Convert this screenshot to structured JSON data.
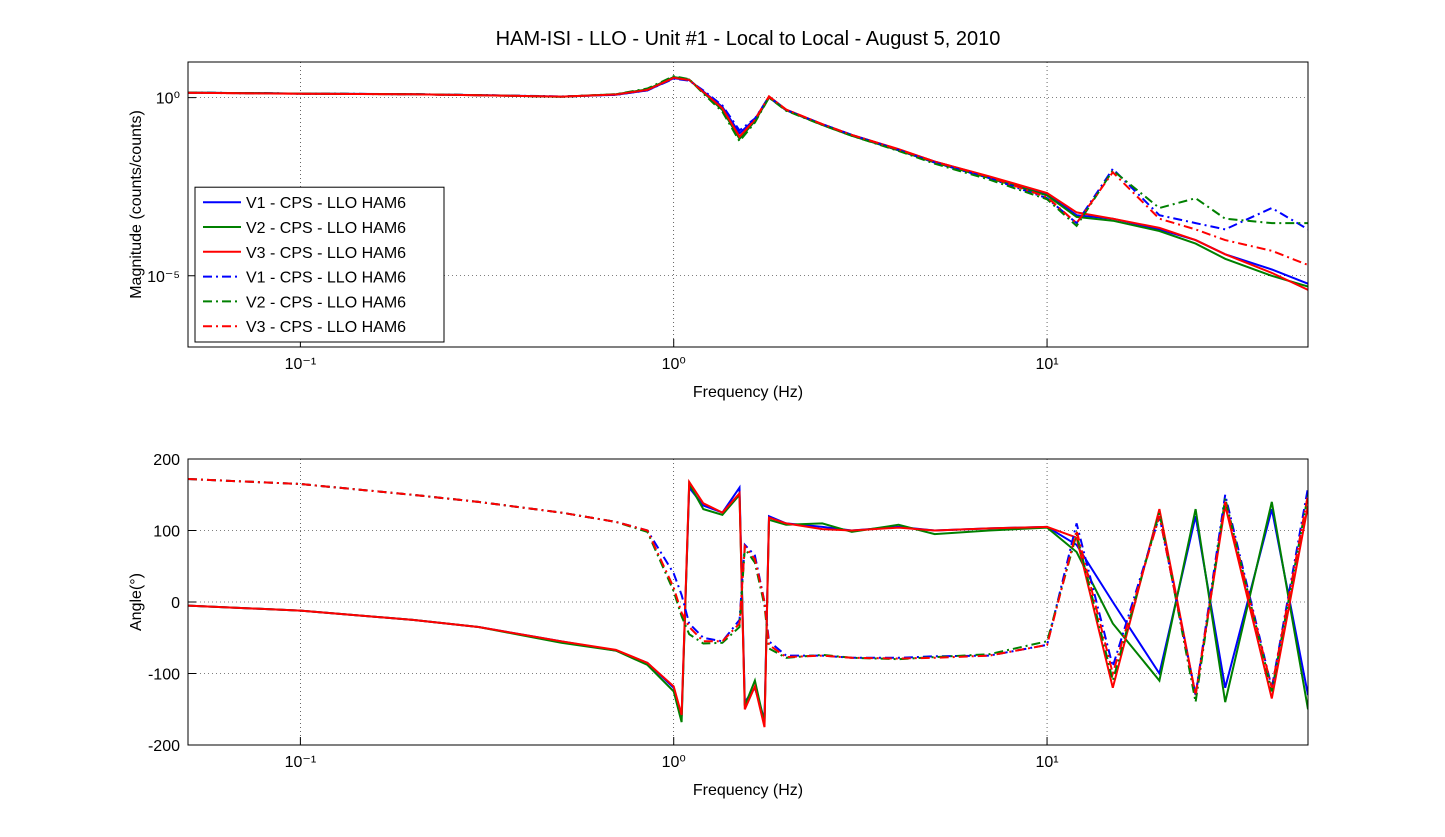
{
  "chart_data": [
    {
      "type": "line",
      "title": "HAM-ISI - LLO - Unit #1 - Local to Local - August 5, 2010",
      "x_label": "Frequency (Hz)",
      "y_label": "Magnitude (counts/counts)",
      "log_x": true,
      "log_y": true,
      "grid": true,
      "legend": "lower left",
      "xlim": [
        0.05,
        50
      ],
      "ylim": [
        1e-07,
        10
      ],
      "xticks": [
        {
          "value": 0.1,
          "label": "10⁻¹"
        },
        {
          "value": 1,
          "label": "10⁰"
        },
        {
          "value": 10,
          "label": "10¹"
        }
      ],
      "yticks": [
        {
          "value": 1e-05,
          "label": "10⁻⁵"
        },
        {
          "value": 1,
          "label": "10⁰"
        }
      ],
      "x": [
        0.05,
        0.1,
        0.2,
        0.3,
        0.5,
        0.7,
        0.85,
        1,
        1.1,
        1.2,
        1.35,
        1.5,
        1.65,
        1.8,
        2,
        2.5,
        3,
        4,
        5,
        7,
        10,
        12,
        15,
        20,
        25,
        30,
        40,
        50
      ],
      "series": [
        {
          "name": "V1 - CPS - LLO HAM6",
          "color": "#0000ff",
          "line_style": "solid",
          "values": [
            1.38,
            1.3,
            1.25,
            1.18,
            1.07,
            1.2,
            1.6,
            3.5,
            3.1,
            1.5,
            0.55,
            0.1,
            0.25,
            1.05,
            0.45,
            0.18,
            0.09,
            0.035,
            0.016,
            0.006,
            0.002,
            0.0005,
            0.0004,
            0.0002,
            0.0001,
            4e-05,
            1.5e-05,
            6e-06
          ]
        },
        {
          "name": "V2 - CPS - LLO HAM6",
          "color": "#008000",
          "line_style": "solid",
          "values": [
            1.38,
            1.3,
            1.24,
            1.17,
            1.06,
            1.25,
            1.7,
            3.8,
            3.2,
            1.4,
            0.45,
            0.07,
            0.22,
            1.0,
            0.44,
            0.17,
            0.085,
            0.033,
            0.015,
            0.0055,
            0.0018,
            0.00045,
            0.00035,
            0.00018,
            8e-05,
            3e-05,
            1e-05,
            5e-06
          ]
        },
        {
          "name": "V3 - CPS - LLO HAM6",
          "color": "#ff0000",
          "line_style": "solid",
          "values": [
            1.37,
            1.29,
            1.24,
            1.17,
            1.07,
            1.22,
            1.65,
            3.6,
            3.15,
            1.45,
            0.5,
            0.08,
            0.24,
            1.08,
            0.46,
            0.18,
            0.09,
            0.036,
            0.016,
            0.0062,
            0.0021,
            0.0006,
            0.0004,
            0.00022,
            0.0001,
            4e-05,
            1.2e-05,
            4e-06
          ]
        },
        {
          "name": "V1 - CPS - LLO HAM6",
          "color": "#0000ff",
          "line_style": "dash-dot",
          "values": [
            1.38,
            1.3,
            1.25,
            1.18,
            1.08,
            1.2,
            1.6,
            3.4,
            3.0,
            1.6,
            0.6,
            0.12,
            0.26,
            1.05,
            0.45,
            0.18,
            0.09,
            0.034,
            0.015,
            0.0055,
            0.0015,
            0.0003,
            0.01,
            0.0005,
            0.0003,
            0.0002,
            0.0008,
            0.0002
          ]
        },
        {
          "name": "V2 - CPS - LLO HAM6",
          "color": "#008000",
          "line_style": "dash-dot",
          "values": [
            1.38,
            1.3,
            1.25,
            1.18,
            1.06,
            1.25,
            1.8,
            4.0,
            3.3,
            1.3,
            0.4,
            0.06,
            0.2,
            1.0,
            0.43,
            0.17,
            0.085,
            0.032,
            0.014,
            0.005,
            0.0014,
            0.00025,
            0.009,
            0.0008,
            0.0015,
            0.0004,
            0.0003,
            0.0003
          ]
        },
        {
          "name": "V3 - CPS - LLO HAM6",
          "color": "#ff0000",
          "line_style": "dash-dot",
          "values": [
            1.37,
            1.29,
            1.24,
            1.17,
            1.07,
            1.22,
            1.65,
            3.6,
            3.1,
            1.45,
            0.5,
            0.08,
            0.24,
            1.07,
            0.46,
            0.18,
            0.09,
            0.035,
            0.016,
            0.006,
            0.0016,
            0.0003,
            0.008,
            0.0004,
            0.0002,
            0.0001,
            5e-05,
            2e-05
          ]
        }
      ]
    },
    {
      "type": "line",
      "x_label": "Frequency (Hz)",
      "y_label": "Angle(°)",
      "log_x": true,
      "log_y": false,
      "grid": true,
      "xlim": [
        0.05,
        50
      ],
      "ylim": [
        -200,
        200
      ],
      "xticks": [
        {
          "value": 0.1,
          "label": "10⁻¹"
        },
        {
          "value": 1,
          "label": "10⁰"
        },
        {
          "value": 10,
          "label": "10¹"
        }
      ],
      "yticks": [
        -200,
        -100,
        0,
        100,
        200
      ],
      "x": [
        0.05,
        0.1,
        0.2,
        0.3,
        0.5,
        0.7,
        0.85,
        1,
        1.05,
        1.1,
        1.2,
        1.35,
        1.5,
        1.55,
        1.65,
        1.75,
        1.8,
        2,
        2.5,
        3,
        4,
        5,
        7,
        10,
        12,
        15,
        20,
        25,
        30,
        40,
        50
      ],
      "series": [
        {
          "color": "#0000ff",
          "line_style": "solid",
          "values": [
            -5,
            -12,
            -25,
            -35,
            -55,
            -68,
            -85,
            -120,
            -160,
            160,
            135,
            125,
            160,
            -140,
            -120,
            -165,
            120,
            110,
            105,
            100,
            105,
            100,
            103,
            105,
            80,
            0,
            -100,
            120,
            -120,
            130,
            -130
          ]
        },
        {
          "color": "#008000",
          "line_style": "solid",
          "values": [
            -5,
            -12,
            -25,
            -35,
            -57,
            -68,
            -88,
            -125,
            -168,
            165,
            130,
            122,
            150,
            -145,
            -110,
            -170,
            115,
            108,
            110,
            98,
            108,
            95,
            100,
            104,
            70,
            -30,
            -110,
            130,
            -140,
            140,
            -150
          ]
        },
        {
          "color": "#ff0000",
          "line_style": "solid",
          "values": [
            -5,
            -12,
            -25,
            -35,
            -55,
            -67,
            -85,
            -118,
            -158,
            168,
            138,
            125,
            152,
            -150,
            -118,
            -175,
            118,
            110,
            102,
            100,
            104,
            100,
            103,
            105,
            90,
            -120,
            130,
            -130,
            135,
            -135,
            135
          ]
        },
        {
          "color": "#0000ff",
          "line_style": "dash-dot",
          "values": [
            172,
            165,
            150,
            140,
            125,
            112,
            100,
            40,
            10,
            -30,
            -50,
            -55,
            -25,
            80,
            65,
            0,
            -55,
            -75,
            -75,
            -78,
            -78,
            -76,
            -75,
            -60,
            110,
            -90,
            120,
            -130,
            150,
            -120,
            160
          ]
        },
        {
          "color": "#008000",
          "line_style": "dash-dot",
          "values": [
            172,
            165,
            150,
            140,
            125,
            112,
            98,
            15,
            -20,
            -45,
            -58,
            -57,
            -35,
            75,
            55,
            -5,
            -65,
            -78,
            -74,
            -78,
            -80,
            -77,
            -73,
            -55,
            95,
            -110,
            125,
            -140,
            145,
            -125,
            150
          ]
        },
        {
          "color": "#ff0000",
          "line_style": "dash-dot",
          "values": [
            172,
            165,
            150,
            140,
            125,
            112,
            100,
            20,
            -15,
            -35,
            -55,
            -55,
            -30,
            78,
            60,
            0,
            -60,
            -77,
            -75,
            -78,
            -79,
            -78,
            -75,
            -60,
            100,
            -100,
            120,
            -130,
            140,
            -120,
            150
          ]
        }
      ]
    }
  ]
}
